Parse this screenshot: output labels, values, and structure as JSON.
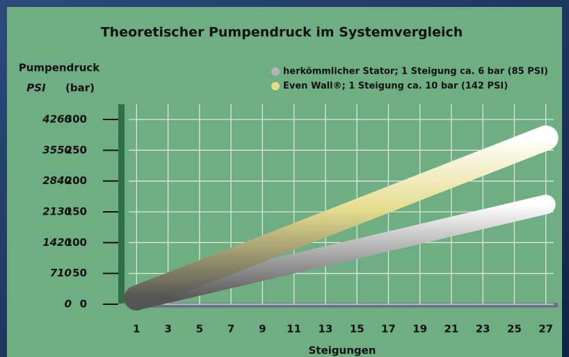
{
  "chart_data": {
    "type": "line",
    "title": "Theoretischer Pumpendruck im Systemvergleich",
    "y_axis_title": "Pumpendruck",
    "y2_axis_label": "PSI",
    "y_axis_label": "(bar)",
    "x_axis_label": "Steigungen",
    "x": [
      1,
      2,
      3,
      4,
      5,
      6,
      7,
      8,
      9,
      10,
      11,
      12,
      13,
      14,
      15,
      16,
      17,
      18,
      19,
      20,
      21,
      22,
      23,
      24,
      25,
      26,
      27
    ],
    "series": [
      {
        "name": "herkömmlicher Stator; 1 Steigung ca. 6 bar (85 PSI)",
        "color": "#b4b4b4",
        "values": [
          6,
          12,
          18,
          24,
          30,
          36,
          42,
          48,
          54,
          60,
          66,
          72,
          78,
          84,
          90,
          96,
          102,
          108,
          114,
          120,
          126,
          132,
          138,
          144,
          150,
          156,
          162
        ]
      },
      {
        "name": "Even Wall®; 1 Steigung ca. 10 bar (142 PSI)",
        "color": "#e6dc8c",
        "values": [
          10,
          20,
          30,
          40,
          50,
          60,
          70,
          80,
          90,
          100,
          110,
          120,
          130,
          140,
          150,
          160,
          170,
          180,
          190,
          200,
          210,
          220,
          230,
          240,
          250,
          260,
          270
        ]
      }
    ],
    "xlim": [
      0.5,
      27.5
    ],
    "xticks": [
      1,
      3,
      5,
      7,
      9,
      11,
      13,
      15,
      17,
      19,
      21,
      23,
      25,
      27
    ],
    "ylim": [
      0,
      300
    ],
    "yticks": [
      0,
      50,
      100,
      150,
      200,
      250,
      300
    ],
    "y2lim": [
      0,
      4260
    ],
    "y2ticks": [
      0,
      710,
      1420,
      2130,
      2840,
      3550,
      4260
    ],
    "grid": true
  }
}
